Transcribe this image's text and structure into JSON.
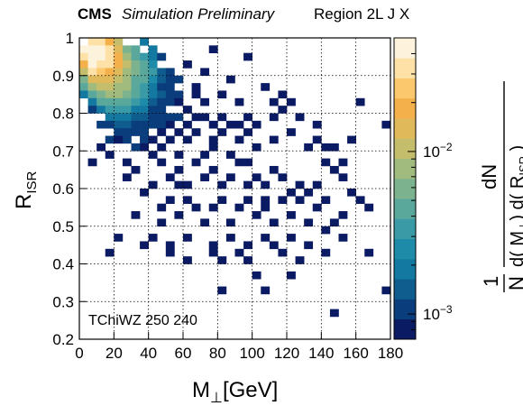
{
  "header": {
    "experiment": "CMS",
    "status": "Simulation Preliminary",
    "region": "Region 2L J X"
  },
  "chart_data": {
    "type": "heatmap",
    "title": "",
    "xlabel_main": "M",
    "xlabel_sub": "⊥",
    "xlabel_unit": "[GeV]",
    "ylabel_main": "R",
    "ylabel_sub": "ISR",
    "zlabel": {
      "numerator": "dN",
      "prefix": "1",
      "den_a": "N d( M",
      "den_sub": "⊥",
      "den_b": ") d( R",
      "den_sub2": "ISR",
      "den_c": " )"
    },
    "annotation": "TChiWZ 250 240",
    "xlim": [
      0,
      180
    ],
    "ylim": [
      0.2,
      1.0
    ],
    "x_ticks": [
      0,
      20,
      40,
      60,
      80,
      100,
      120,
      140,
      160,
      180
    ],
    "x_tick_labels": [
      "0",
      "20",
      "40",
      "60",
      "80",
      "100",
      "120",
      "140",
      "160",
      "180"
    ],
    "y_ticks": [
      0.2,
      0.3,
      0.4,
      0.5,
      0.6,
      0.7,
      0.8,
      0.9,
      1.0
    ],
    "y_tick_labels": [
      "0.2",
      "0.3",
      "0.4",
      "0.5",
      "0.6",
      "0.7",
      "0.8",
      "0.9",
      "1"
    ],
    "zlim": [
      0.0007,
      0.05
    ],
    "z_scale": "log",
    "z_tick_labels": [
      {
        "value": 0.001,
        "label": "10",
        "exp": "−3"
      },
      {
        "value": 0.01,
        "label": "10",
        "exp": "−2"
      }
    ],
    "grid": true,
    "bin_width_x": 5,
    "bin_width_y": 0.02,
    "bins": [
      [
        0,
        0.97,
        0.04
      ],
      [
        0,
        0.95,
        0.035
      ],
      [
        0,
        0.93,
        0.02
      ],
      [
        0,
        0.91,
        0.012
      ],
      [
        0,
        0.89,
        0.006
      ],
      [
        0,
        0.87,
        0.004
      ],
      [
        0,
        0.85,
        0.002
      ],
      [
        5,
        0.99,
        0.03
      ],
      [
        5,
        0.97,
        0.045
      ],
      [
        5,
        0.95,
        0.05
      ],
      [
        5,
        0.93,
        0.04
      ],
      [
        5,
        0.91,
        0.03
      ],
      [
        5,
        0.89,
        0.015
      ],
      [
        5,
        0.87,
        0.008
      ],
      [
        5,
        0.85,
        0.004
      ],
      [
        5,
        0.83,
        0.002
      ],
      [
        5,
        0.81,
        0.0012
      ],
      [
        10,
        0.99,
        0.03
      ],
      [
        10,
        0.97,
        0.04
      ],
      [
        10,
        0.95,
        0.04
      ],
      [
        10,
        0.93,
        0.035
      ],
      [
        10,
        0.91,
        0.025
      ],
      [
        10,
        0.89,
        0.015
      ],
      [
        10,
        0.87,
        0.01
      ],
      [
        10,
        0.85,
        0.006
      ],
      [
        10,
        0.83,
        0.004
      ],
      [
        10,
        0.81,
        0.002
      ],
      [
        10,
        0.77,
        0.0011
      ],
      [
        15,
        0.99,
        0.02
      ],
      [
        15,
        0.97,
        0.03
      ],
      [
        15,
        0.95,
        0.035
      ],
      [
        15,
        0.93,
        0.03
      ],
      [
        15,
        0.91,
        0.02
      ],
      [
        15,
        0.89,
        0.015
      ],
      [
        15,
        0.87,
        0.01
      ],
      [
        15,
        0.85,
        0.007
      ],
      [
        15,
        0.83,
        0.005
      ],
      [
        15,
        0.81,
        0.003
      ],
      [
        15,
        0.79,
        0.002
      ],
      [
        15,
        0.77,
        0.0012
      ],
      [
        15,
        0.73,
        0.001
      ],
      [
        20,
        0.99,
        0.01
      ],
      [
        20,
        0.97,
        0.015
      ],
      [
        20,
        0.95,
        0.02
      ],
      [
        20,
        0.93,
        0.02
      ],
      [
        20,
        0.91,
        0.015
      ],
      [
        20,
        0.89,
        0.012
      ],
      [
        20,
        0.87,
        0.009
      ],
      [
        20,
        0.85,
        0.007
      ],
      [
        20,
        0.83,
        0.005
      ],
      [
        20,
        0.81,
        0.003
      ],
      [
        20,
        0.79,
        0.002
      ],
      [
        20,
        0.77,
        0.0015
      ],
      [
        20,
        0.75,
        0.001
      ],
      [
        25,
        0.97,
        0.006
      ],
      [
        25,
        0.95,
        0.008
      ],
      [
        25,
        0.93,
        0.01
      ],
      [
        25,
        0.91,
        0.009
      ],
      [
        25,
        0.89,
        0.008
      ],
      [
        25,
        0.87,
        0.007
      ],
      [
        25,
        0.85,
        0.006
      ],
      [
        25,
        0.83,
        0.004
      ],
      [
        25,
        0.81,
        0.003
      ],
      [
        25,
        0.79,
        0.002
      ],
      [
        25,
        0.77,
        0.0015
      ],
      [
        25,
        0.75,
        0.0012
      ],
      [
        25,
        0.73,
        0.001
      ],
      [
        30,
        0.97,
        0.004
      ],
      [
        30,
        0.95,
        0.005
      ],
      [
        30,
        0.93,
        0.006
      ],
      [
        30,
        0.91,
        0.006
      ],
      [
        30,
        0.89,
        0.005
      ],
      [
        30,
        0.87,
        0.005
      ],
      [
        30,
        0.85,
        0.004
      ],
      [
        30,
        0.83,
        0.003
      ],
      [
        30,
        0.81,
        0.002
      ],
      [
        30,
        0.79,
        0.0015
      ],
      [
        30,
        0.77,
        0.0012
      ],
      [
        30,
        0.75,
        0.001
      ],
      [
        30,
        0.71,
        0.001
      ],
      [
        35,
        0.99,
        0.002
      ],
      [
        35,
        0.95,
        0.003
      ],
      [
        35,
        0.93,
        0.004
      ],
      [
        35,
        0.91,
        0.004
      ],
      [
        35,
        0.89,
        0.004
      ],
      [
        35,
        0.87,
        0.003
      ],
      [
        35,
        0.85,
        0.003
      ],
      [
        35,
        0.83,
        0.0025
      ],
      [
        35,
        0.81,
        0.002
      ],
      [
        35,
        0.79,
        0.0015
      ],
      [
        35,
        0.77,
        0.0012
      ],
      [
        35,
        0.75,
        0.001
      ],
      [
        35,
        0.73,
        0.001
      ],
      [
        35,
        0.71,
        0.0009
      ],
      [
        40,
        0.97,
        0.002
      ],
      [
        40,
        0.95,
        0.002
      ],
      [
        40,
        0.93,
        0.0025
      ],
      [
        40,
        0.91,
        0.003
      ],
      [
        40,
        0.89,
        0.0025
      ],
      [
        40,
        0.87,
        0.002
      ],
      [
        40,
        0.85,
        0.002
      ],
      [
        40,
        0.83,
        0.0015
      ],
      [
        40,
        0.81,
        0.0012
      ],
      [
        40,
        0.79,
        0.001
      ],
      [
        40,
        0.77,
        0.001
      ],
      [
        40,
        0.73,
        0.0009
      ],
      [
        40,
        0.69,
        0.0009
      ],
      [
        45,
        0.95,
        0.0012
      ],
      [
        45,
        0.91,
        0.0015
      ],
      [
        45,
        0.89,
        0.0015
      ],
      [
        45,
        0.87,
        0.0012
      ],
      [
        45,
        0.85,
        0.0015
      ],
      [
        45,
        0.83,
        0.0012
      ],
      [
        45,
        0.81,
        0.001
      ],
      [
        45,
        0.79,
        0.001
      ],
      [
        45,
        0.77,
        0.001
      ],
      [
        45,
        0.75,
        0.0009
      ],
      [
        45,
        0.71,
        0.0009
      ],
      [
        50,
        0.91,
        0.001
      ],
      [
        50,
        0.89,
        0.0012
      ],
      [
        50,
        0.87,
        0.0012
      ],
      [
        50,
        0.85,
        0.001
      ],
      [
        50,
        0.83,
        0.001
      ],
      [
        50,
        0.79,
        0.001
      ],
      [
        50,
        0.77,
        0.0009
      ],
      [
        50,
        0.73,
        0.0009
      ],
      [
        55,
        0.89,
        0.001
      ],
      [
        55,
        0.85,
        0.001
      ],
      [
        55,
        0.83,
        0.0009
      ],
      [
        55,
        0.79,
        0.001
      ],
      [
        55,
        0.75,
        0.0009
      ],
      [
        55,
        0.69,
        0.0009
      ],
      [
        60,
        0.81,
        0.0009
      ],
      [
        60,
        0.77,
        0.0009
      ],
      [
        60,
        0.73,
        0.0009
      ],
      [
        65,
        0.85,
        0.0009
      ],
      [
        65,
        0.79,
        0.0009
      ],
      [
        65,
        0.75,
        0.0009
      ],
      [
        70,
        0.83,
        0.0009
      ],
      [
        70,
        0.79,
        0.0009
      ],
      [
        75,
        0.77,
        0.0009
      ],
      [
        75,
        0.73,
        0.0009
      ],
      [
        80,
        0.79,
        0.0009
      ],
      [
        80,
        0.75,
        0.0009
      ],
      [
        85,
        0.77,
        0.0009
      ],
      [
        90,
        0.77,
        0.0009
      ],
      [
        90,
        0.73,
        0.0009
      ],
      [
        95,
        0.79,
        0.0009
      ],
      [
        95,
        0.75,
        0.0009
      ],
      [
        100,
        0.77,
        0.0009
      ],
      [
        110,
        0.83,
        0.0009
      ],
      [
        110,
        0.79,
        0.0009
      ],
      [
        115,
        0.81,
        0.0009
      ],
      [
        120,
        0.75,
        0.0009
      ],
      [
        130,
        0.71,
        0.0009
      ],
      [
        135,
        0.73,
        0.0009
      ],
      [
        140,
        0.67,
        0.0009
      ],
      [
        145,
        0.71,
        0.0009
      ],
      [
        165,
        0.55,
        0.0009
      ],
      [
        25,
        0.67,
        0.0009
      ],
      [
        40,
        0.61,
        0.0009
      ],
      [
        45,
        0.67,
        0.0009
      ],
      [
        50,
        0.63,
        0.0009
      ],
      [
        55,
        0.65,
        0.0009
      ],
      [
        60,
        0.61,
        0.0009
      ],
      [
        65,
        0.67,
        0.0009
      ],
      [
        70,
        0.63,
        0.0009
      ],
      [
        75,
        0.65,
        0.0009
      ],
      [
        80,
        0.61,
        0.0009
      ],
      [
        85,
        0.63,
        0.0009
      ],
      [
        90,
        0.67,
        0.0009
      ],
      [
        95,
        0.61,
        0.0009
      ],
      [
        100,
        0.63,
        0.0009
      ],
      [
        105,
        0.61,
        0.0009
      ],
      [
        110,
        0.65,
        0.0009
      ],
      [
        115,
        0.63,
        0.0009
      ],
      [
        120,
        0.59,
        0.0009
      ],
      [
        125,
        0.57,
        0.0009
      ],
      [
        130,
        0.59,
        0.0009
      ],
      [
        135,
        0.61,
        0.0009
      ],
      [
        140,
        0.57,
        0.0009
      ],
      [
        150,
        0.53,
        0.0009
      ],
      [
        155,
        0.59,
        0.0009
      ],
      [
        30,
        0.53,
        0.0009
      ],
      [
        45,
        0.51,
        0.0009
      ],
      [
        50,
        0.57,
        0.0009
      ],
      [
        55,
        0.53,
        0.0009
      ],
      [
        60,
        0.57,
        0.0009
      ],
      [
        65,
        0.55,
        0.0009
      ],
      [
        70,
        0.51,
        0.0009
      ],
      [
        75,
        0.55,
        0.0009
      ],
      [
        80,
        0.57,
        0.0009
      ],
      [
        85,
        0.51,
        0.0009
      ],
      [
        90,
        0.55,
        0.0009
      ],
      [
        95,
        0.57,
        0.0009
      ],
      [
        100,
        0.53,
        0.0009
      ],
      [
        105,
        0.55,
        0.0009
      ],
      [
        110,
        0.51,
        0.0009
      ],
      [
        115,
        0.57,
        0.0009
      ],
      [
        120,
        0.53,
        0.0009
      ],
      [
        130,
        0.51,
        0.0009
      ],
      [
        135,
        0.55,
        0.0009
      ],
      [
        145,
        0.51,
        0.0009
      ],
      [
        20,
        0.47,
        0.0009
      ],
      [
        35,
        0.45,
        0.0009
      ],
      [
        40,
        0.47,
        0.0009
      ],
      [
        50,
        0.45,
        0.0009
      ],
      [
        60,
        0.47,
        0.0009
      ],
      [
        75,
        0.45,
        0.0009
      ],
      [
        85,
        0.47,
        0.0009
      ],
      [
        95,
        0.45,
        0.0009
      ],
      [
        105,
        0.47,
        0.0009
      ],
      [
        110,
        0.45,
        0.0009
      ],
      [
        120,
        0.47,
        0.0009
      ],
      [
        125,
        0.41,
        0.0009
      ],
      [
        130,
        0.45,
        0.0009
      ],
      [
        140,
        0.49,
        0.0009
      ],
      [
        150,
        0.47,
        0.0009
      ],
      [
        15,
        0.43,
        0.0009
      ],
      [
        50,
        0.43,
        0.0009
      ],
      [
        60,
        0.41,
        0.0009
      ],
      [
        75,
        0.43,
        0.0009
      ],
      [
        90,
        0.43,
        0.0009
      ],
      [
        140,
        0.43,
        0.0009
      ],
      [
        165,
        0.43,
        0.0009
      ],
      [
        95,
        0.41,
        0.0009
      ],
      [
        80,
        0.41,
        0.0009
      ],
      [
        100,
        0.37,
        0.0009
      ],
      [
        120,
        0.37,
        0.0009
      ],
      [
        105,
        0.33,
        0.0009
      ],
      [
        80,
        0.33,
        0.0009
      ],
      [
        175,
        0.33,
        0.0009
      ],
      [
        145,
        0.27,
        0.0009
      ],
      [
        160,
        0.83,
        0.0009
      ],
      [
        175,
        0.77,
        0.0009
      ],
      [
        150,
        0.67,
        0.0009
      ],
      [
        135,
        0.77,
        0.0009
      ],
      [
        150,
        0.63,
        0.0009
      ],
      [
        160,
        0.57,
        0.0009
      ],
      [
        115,
        0.43,
        0.0009
      ],
      [
        105,
        0.57,
        0.0009
      ],
      [
        125,
        0.61,
        0.0009
      ],
      [
        95,
        0.67,
        0.0009
      ],
      [
        85,
        0.69,
        0.0009
      ],
      [
        100,
        0.71,
        0.0009
      ],
      [
        75,
        0.71,
        0.0009
      ],
      [
        70,
        0.69,
        0.0009
      ],
      [
        110,
        0.73,
        0.0009
      ],
      [
        80,
        0.85,
        0.0009
      ],
      [
        85,
        0.89,
        0.0009
      ],
      [
        95,
        0.95,
        0.0009
      ],
      [
        105,
        0.87,
        0.0009
      ],
      [
        115,
        0.85,
        0.0009
      ],
      [
        70,
        0.91,
        0.0009
      ],
      [
        75,
        0.97,
        0.0009
      ],
      [
        90,
        0.83,
        0.0009
      ],
      [
        60,
        0.93,
        0.0009
      ],
      [
        65,
        0.87,
        0.0009
      ],
      [
        120,
        0.83,
        0.0009
      ],
      [
        125,
        0.79,
        0.0009
      ],
      [
        140,
        0.71,
        0.0009
      ],
      [
        155,
        0.73,
        0.0009
      ],
      [
        145,
        0.65,
        0.0009
      ],
      [
        15,
        0.69,
        0.0009
      ],
      [
        25,
        0.63,
        0.0009
      ],
      [
        35,
        0.59,
        0.0009
      ],
      [
        55,
        0.61,
        0.0009
      ],
      [
        45,
        0.55,
        0.0009
      ],
      [
        30,
        0.65,
        0.0009
      ],
      [
        20,
        0.73,
        0.0009
      ],
      [
        10,
        0.71,
        0.0009
      ],
      [
        5,
        0.67,
        0.0009
      ]
    ],
    "palette": [
      "#0a1a63",
      "#0a3d7c",
      "#0f5d8e",
      "#1379a0",
      "#1e8ba8",
      "#3a9ba6",
      "#5aa89c",
      "#7cb38e",
      "#a0bb7d",
      "#c3bd6c",
      "#e0b95b",
      "#f4b04a",
      "#fcc86e",
      "#fde1a6",
      "#fdf3dc"
    ]
  }
}
